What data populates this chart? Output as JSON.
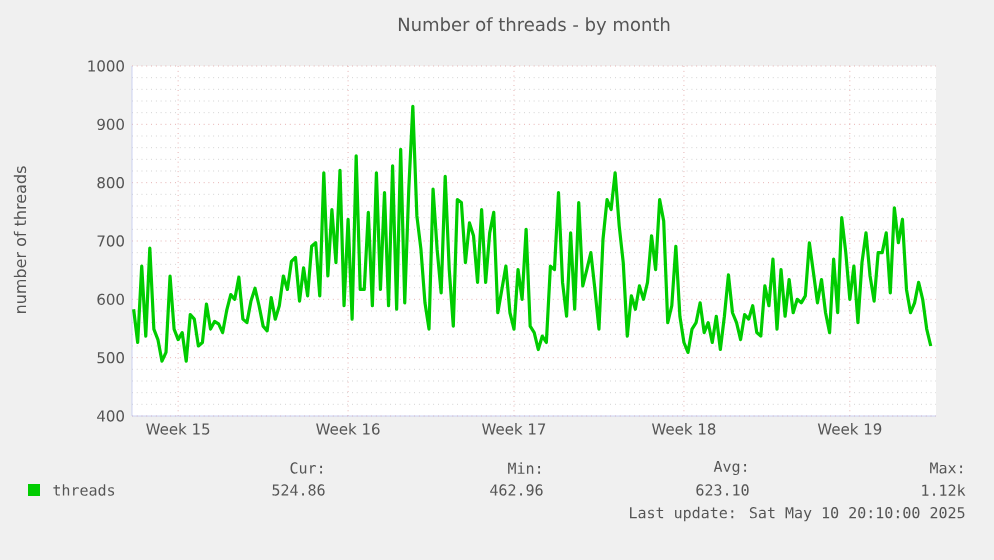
{
  "chart_data": {
    "type": "line",
    "title": "Number of threads - by month",
    "ylabel": "number of threads",
    "ylim": [
      400,
      1000
    ],
    "categories": [
      null,
      null,
      null,
      null,
      null,
      null,
      null,
      null,
      null,
      null,
      null,
      "Week 15",
      null,
      null,
      null,
      null,
      null,
      null,
      null,
      null,
      null,
      null,
      null,
      null,
      null,
      null,
      null,
      null,
      null,
      null,
      null,
      null,
      null,
      null,
      null,
      null,
      null,
      null,
      null,
      null,
      null,
      null,
      null,
      null,
      null,
      null,
      null,
      null,
      null,
      null,
      null,
      null,
      null,
      "Week 16",
      null,
      null,
      null,
      null,
      null,
      null,
      null,
      null,
      null,
      null,
      null,
      null,
      null,
      null,
      null,
      null,
      null,
      null,
      null,
      null,
      null,
      null,
      null,
      null,
      null,
      null,
      null,
      null,
      null,
      null,
      null,
      null,
      null,
      null,
      null,
      null,
      null,
      null,
      null,
      null,
      "Week 17",
      null,
      null,
      null,
      null,
      null,
      null,
      null,
      null,
      null,
      null,
      null,
      null,
      null,
      null,
      null,
      null,
      null,
      null,
      null,
      null,
      null,
      null,
      null,
      null,
      null,
      null,
      null,
      null,
      null,
      null,
      null,
      null,
      null,
      null,
      null,
      null,
      null,
      null,
      null,
      null,
      null,
      "Week 18",
      null,
      null,
      null,
      null,
      null,
      null,
      null,
      null,
      null,
      null,
      null,
      null,
      null,
      null,
      null,
      null,
      null,
      null,
      null,
      null,
      null,
      null,
      null,
      null,
      null,
      null,
      null,
      null,
      null,
      null,
      null,
      null,
      null,
      null,
      null,
      null,
      null,
      null,
      null,
      null,
      "Week 19",
      null,
      null,
      null,
      null,
      null,
      null,
      null,
      null,
      null,
      null,
      null,
      null,
      null,
      null,
      null,
      null,
      null,
      null,
      null,
      null
    ],
    "yticks": [
      400,
      500,
      600,
      700,
      800,
      900,
      1000
    ],
    "grid": true,
    "legend": "bottom left",
    "marker": "none",
    "line_style": "solid",
    "annotations": [
      "Cur:",
      "524.86",
      "Min:",
      "462.96",
      "Avg:",
      "623.10",
      "Max:",
      "1.12k",
      "Last update: Sat May 10 20:10:00 2025"
    ],
    "series": [
      {
        "name": "threads",
        "color": "#00cc00",
        "values": [
          583,
          526,
          657,
          537,
          688,
          549,
          531,
          494,
          509,
          640,
          549,
          531,
          543,
          494,
          574,
          566,
          520,
          526,
          592,
          549,
          562,
          558,
          543,
          581,
          608,
          600,
          638,
          566,
          560,
          597,
          619,
          589,
          554,
          546,
          603,
          566,
          589,
          640,
          617,
          665,
          672,
          597,
          654,
          606,
          691,
          697,
          606,
          817,
          640,
          754,
          663,
          821,
          589,
          737,
          566,
          846,
          617,
          617,
          749,
          589,
          817,
          617,
          783,
          589,
          829,
          583,
          857,
          594,
          789,
          931,
          743,
          686,
          594,
          549,
          789,
          686,
          611,
          811,
          651,
          554,
          771,
          766,
          663,
          731,
          709,
          629,
          754,
          629,
          714,
          749,
          577,
          617,
          657,
          577,
          549,
          651,
          600,
          720,
          554,
          543,
          514,
          537,
          526,
          657,
          651,
          783,
          629,
          571,
          714,
          583,
          766,
          623,
          651,
          680,
          617,
          549,
          703,
          771,
          754,
          817,
          726,
          663,
          537,
          606,
          583,
          623,
          600,
          629,
          709,
          651,
          771,
          734,
          560,
          589,
          691,
          571,
          526,
          509,
          549,
          560,
          594,
          543,
          560,
          526,
          571,
          514,
          571,
          642,
          577,
          560,
          531,
          574,
          566,
          589,
          543,
          537,
          623,
          589,
          669,
          549,
          651,
          571,
          634,
          577,
          600,
          594,
          606,
          697,
          646,
          594,
          634,
          577,
          543,
          669,
          577,
          740,
          680,
          600,
          657,
          560,
          663,
          714,
          640,
          597,
          680,
          680,
          714,
          611,
          757,
          697,
          737,
          617,
          577,
          594,
          629,
          600,
          549,
          520
        ]
      }
    ]
  }
}
